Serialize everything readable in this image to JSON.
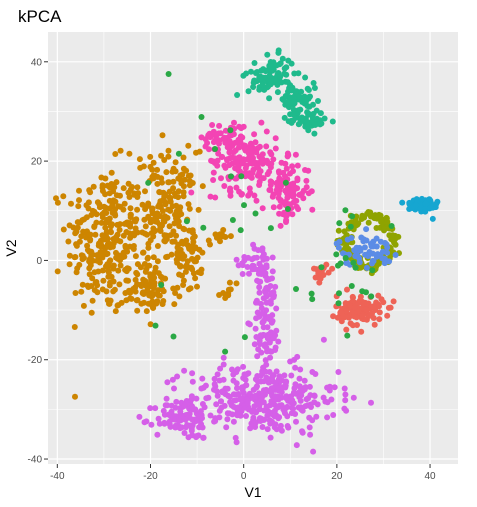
{
  "chart_data": {
    "type": "scatter",
    "title": "kPCA",
    "xlabel": "V1",
    "ylabel": "V2",
    "xlim": [
      -42,
      46
    ],
    "ylim": [
      -41,
      46
    ],
    "x_ticks": [
      -40,
      -20,
      0,
      20,
      40
    ],
    "y_ticks": [
      -40,
      -20,
      0,
      20,
      40
    ],
    "grid": true,
    "legend": "none",
    "point_note": "clusters approximated from the image; point positions estimated",
    "colors": {
      "panel_bg": "#ebebeb",
      "gridline": "#ffffff",
      "orange": "#CD8500",
      "magenta": "#D55FE8",
      "pink": "#F344B4",
      "teal": "#1FBA8C",
      "olive": "#8FA300",
      "blue": "#5B8CE6",
      "cyan": "#16A6D1",
      "red": "#EE6356",
      "green": "#2AA845"
    },
    "clusters": [
      {
        "color_key": "orange",
        "shape": "blob",
        "cx": -30,
        "cy": 4,
        "rx": 8,
        "ry": 15,
        "n": 260
      },
      {
        "color_key": "orange",
        "shape": "blob",
        "cx": -17,
        "cy": 10,
        "rx": 7,
        "ry": 12,
        "n": 200
      },
      {
        "color_key": "orange",
        "shape": "blob",
        "cx": -20,
        "cy": -6,
        "rx": 6,
        "ry": 5,
        "n": 80
      },
      {
        "color_key": "orange",
        "shape": "blob",
        "cx": -12,
        "cy": 0,
        "rx": 3,
        "ry": 6,
        "n": 50
      },
      {
        "color_key": "orange",
        "shape": "blob",
        "cx": -5,
        "cy": 5,
        "rx": 1.5,
        "ry": 1.5,
        "n": 10
      },
      {
        "color_key": "orange",
        "shape": "blob",
        "cx": -3,
        "cy": -6,
        "rx": 2,
        "ry": 2,
        "n": 10
      },
      {
        "color_key": "magenta",
        "shape": "blob",
        "cx": 4,
        "cy": -28,
        "rx": 16,
        "ry": 7,
        "n": 340
      },
      {
        "color_key": "magenta",
        "shape": "blob",
        "cx": -13,
        "cy": -32,
        "rx": 6,
        "ry": 4,
        "n": 90
      },
      {
        "color_key": "magenta",
        "shape": "blob",
        "cx": 5,
        "cy": -12,
        "rx": 3,
        "ry": 10,
        "n": 90
      },
      {
        "color_key": "magenta",
        "shape": "blob",
        "cx": 3,
        "cy": 0,
        "rx": 4,
        "ry": 4,
        "n": 40
      },
      {
        "color_key": "pink",
        "shape": "blob",
        "cx": 0,
        "cy": 20,
        "rx": 7,
        "ry": 6,
        "n": 140
      },
      {
        "color_key": "pink",
        "shape": "blob",
        "cx": 9,
        "cy": 14,
        "rx": 5,
        "ry": 6,
        "n": 110
      },
      {
        "color_key": "pink",
        "shape": "blob",
        "cx": -4,
        "cy": 25,
        "rx": 5,
        "ry": 3,
        "n": 50
      },
      {
        "color_key": "teal",
        "shape": "blob",
        "cx": 6,
        "cy": 37,
        "rx": 5,
        "ry": 4,
        "n": 90
      },
      {
        "color_key": "teal",
        "shape": "blob",
        "cx": 12,
        "cy": 32,
        "rx": 4,
        "ry": 3,
        "n": 60
      },
      {
        "color_key": "teal",
        "shape": "blob",
        "cx": 14,
        "cy": 28,
        "rx": 4,
        "ry": 2,
        "n": 40
      },
      {
        "color_key": "olive",
        "shape": "ring",
        "cx": 27,
        "cy": 4,
        "rx": 6,
        "ry": 6,
        "n": 140
      },
      {
        "color_key": "blue",
        "shape": "blob",
        "cx": 26,
        "cy": 2,
        "rx": 6,
        "ry": 3,
        "n": 60
      },
      {
        "color_key": "cyan",
        "shape": "blob",
        "cx": 38,
        "cy": 11,
        "rx": 4,
        "ry": 2,
        "n": 50
      },
      {
        "color_key": "red",
        "shape": "blob",
        "cx": 25,
        "cy": -10,
        "rx": 5,
        "ry": 3,
        "n": 120
      },
      {
        "color_key": "red",
        "shape": "blob",
        "cx": 17,
        "cy": -2,
        "rx": 2,
        "ry": 2,
        "n": 15
      },
      {
        "color_key": "green",
        "shape": "blob",
        "cx": 22,
        "cy": 0,
        "rx": 8,
        "ry": 12,
        "n": 20
      },
      {
        "color_key": "green",
        "shape": "blob",
        "cx": 0,
        "cy": 10,
        "rx": 25,
        "ry": 30,
        "n": 25
      }
    ]
  }
}
